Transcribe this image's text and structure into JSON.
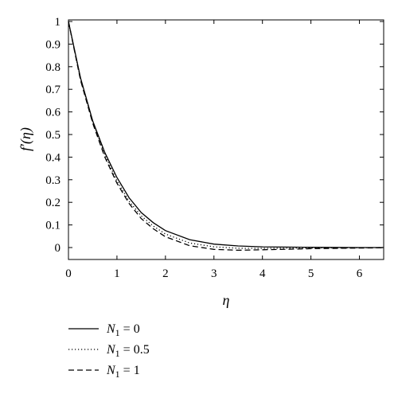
{
  "chart_data": {
    "type": "line",
    "xlabel": "η",
    "ylabel": "f′(η)",
    "xlim": [
      0,
      6.5
    ],
    "ylim": [
      -0.05,
      1.0
    ],
    "x_ticks": [
      "0",
      "1",
      "2",
      "3",
      "4",
      "5",
      "6"
    ],
    "y_ticks": [
      "0",
      "0.1",
      "0.2",
      "0.3",
      "0.4",
      "0.5",
      "0.6",
      "0.7",
      "0.8",
      "0.9",
      "1"
    ],
    "grid": false,
    "legend_position": "bottom-left",
    "x": [
      0,
      0.25,
      0.5,
      0.75,
      1.0,
      1.25,
      1.5,
      1.75,
      2.0,
      2.5,
      3.0,
      3.5,
      4.0,
      5.0,
      6.0,
      6.5
    ],
    "series": [
      {
        "name": "N1 = 0",
        "style": "solid",
        "values": [
          1.0,
          0.75,
          0.56,
          0.42,
          0.31,
          0.22,
          0.155,
          0.11,
          0.075,
          0.035,
          0.015,
          0.007,
          0.003,
          0.001,
          0.0,
          0.0
        ]
      },
      {
        "name": "N1 = 0.5",
        "style": "dotted",
        "values": [
          1.0,
          0.745,
          0.555,
          0.41,
          0.295,
          0.205,
          0.14,
          0.095,
          0.06,
          0.02,
          0.003,
          -0.003,
          -0.004,
          -0.002,
          -0.001,
          0.0
        ]
      },
      {
        "name": "N1 = 1",
        "style": "dashed",
        "values": [
          1.0,
          0.74,
          0.55,
          0.4,
          0.285,
          0.195,
          0.128,
          0.083,
          0.048,
          0.008,
          -0.008,
          -0.012,
          -0.01,
          -0.005,
          -0.002,
          -0.001
        ]
      }
    ],
    "legend": [
      {
        "prefix": "N",
        "subscript": "1",
        "suffix": " = 0"
      },
      {
        "prefix": "N",
        "subscript": "1",
        "suffix": " = 0.5"
      },
      {
        "prefix": "N",
        "subscript": "1",
        "suffix": " = 1"
      }
    ]
  }
}
